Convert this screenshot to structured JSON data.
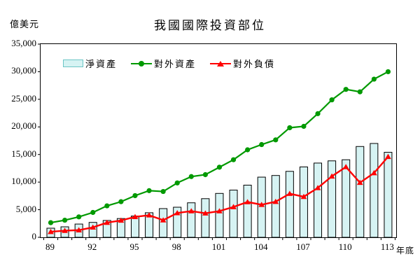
{
  "header": {
    "title": "我國國際投資部位",
    "y_unit_label": "億美元",
    "x_unit_label": "年底"
  },
  "legend": {
    "position": "top-left-inside",
    "items": [
      {
        "label": "淨資產",
        "swatch": "bar",
        "color": "#d6f3f3",
        "border": "#6cc5c5"
      },
      {
        "label": "對外資產",
        "swatch": "line-circle",
        "color": "#009900"
      },
      {
        "label": "對外負債",
        "swatch": "line-triangle",
        "color": "#ff0000"
      }
    ]
  },
  "chart_data": {
    "type": "combo",
    "title": "我國國際投資部位",
    "xlabel": "年底",
    "ylabel": "億美元",
    "grid": false,
    "ylim": [
      0,
      35000
    ],
    "y_ticks": [
      0,
      5000,
      10000,
      15000,
      20000,
      25000,
      30000,
      35000
    ],
    "y_tick_labels": [
      "0",
      "5,000",
      "10,000",
      "15,000",
      "20,000",
      "25,000",
      "30,000",
      "35,000"
    ],
    "x": [
      89,
      90,
      91,
      92,
      93,
      94,
      95,
      96,
      97,
      98,
      99,
      100,
      101,
      102,
      103,
      104,
      105,
      106,
      107,
      108,
      109,
      110,
      111,
      112,
      113
    ],
    "x_tick_labels": [
      "89",
      "92",
      "95",
      "98",
      "101",
      "104",
      "107",
      "110",
      "113"
    ],
    "x_label_years": [
      89,
      92,
      95,
      98,
      101,
      104,
      107,
      110,
      113
    ],
    "series": [
      {
        "name": "淨資產",
        "kind": "bar",
        "marker": "none",
        "color": "#d6f3f3",
        "border_color": "#000000",
        "values": [
          1650,
          1900,
          2400,
          2700,
          3050,
          3400,
          3850,
          4450,
          5200,
          5450,
          6250,
          7000,
          7950,
          8550,
          9450,
          10900,
          11200,
          11950,
          12750,
          13450,
          13850,
          14050,
          16450,
          17000,
          15400
        ]
      },
      {
        "name": "對外資產",
        "kind": "line",
        "marker": "circle",
        "color": "#009900",
        "values": [
          2650,
          3100,
          3700,
          4500,
          5700,
          6450,
          7550,
          8450,
          8300,
          9850,
          11000,
          11350,
          12700,
          14050,
          15850,
          16800,
          17650,
          19850,
          20100,
          22400,
          24900,
          26800,
          26350,
          28650,
          30000
        ]
      },
      {
        "name": "對外負債",
        "kind": "line",
        "marker": "triangle",
        "color": "#ff0000",
        "values": [
          1000,
          1200,
          1300,
          1800,
          2650,
          3050,
          3700,
          4000,
          3100,
          4400,
          4750,
          4350,
          4750,
          5500,
          6400,
          5900,
          6450,
          7900,
          7350,
          8950,
          11050,
          12750,
          9900,
          11650,
          14600
        ]
      }
    ]
  }
}
